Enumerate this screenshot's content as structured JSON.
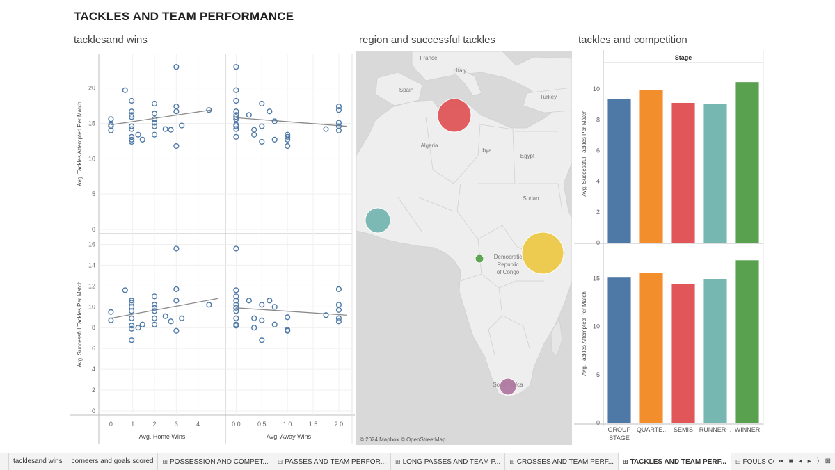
{
  "dashboard": {
    "title": "TACKLES AND TEAM PERFORMANCE"
  },
  "sheets": {
    "scatter_title": "tacklesand wins",
    "map_title": "region and successful tackles",
    "bar_title": "tackles and competition"
  },
  "map": {
    "attribution": "© 2024 Mapbox © OpenStreetMap",
    "labels": [
      {
        "text": "France"
      },
      {
        "text": "Italy"
      },
      {
        "text": "Spain"
      },
      {
        "text": "Turkey"
      },
      {
        "text": "Algeria"
      },
      {
        "text": "Libya"
      },
      {
        "text": "Egypt"
      },
      {
        "text": "Sudan"
      },
      {
        "text": "Democratic"
      },
      {
        "text": "Republic"
      },
      {
        "text": "of Congo"
      },
      {
        "text": "South Africa"
      }
    ],
    "bubbles": [
      {
        "region": "North Africa",
        "color": "#e15759"
      },
      {
        "region": "West Africa",
        "color": "#76b7b2"
      },
      {
        "region": "Central Africa",
        "color": "#59a14f"
      },
      {
        "region": "East Africa",
        "color": "#edc948"
      },
      {
        "region": "Southern Africa",
        "color": "#b07aa1"
      }
    ]
  },
  "chart_data": [
    {
      "type": "scatter",
      "title": "tacklesand wins",
      "xlabel": "Avg. Home Wins",
      "ylabel": "Avg. Tackles Attempted Per Match",
      "xlim": [
        -0.3,
        5
      ],
      "ylim": [
        0,
        24
      ],
      "xticks": [
        0,
        1,
        2,
        3,
        4
      ],
      "yticks": [
        0,
        5,
        10,
        15,
        20
      ],
      "trend": [
        [
          0,
          14.8
        ],
        [
          4.6,
          16.9
        ]
      ],
      "points": [
        [
          0,
          15.6
        ],
        [
          0,
          14.8
        ],
        [
          0,
          14.0
        ],
        [
          0,
          14.6
        ],
        [
          0.65,
          19.7
        ],
        [
          0.95,
          18.2
        ],
        [
          0.95,
          16.7
        ],
        [
          0.95,
          16.2
        ],
        [
          0.95,
          15.9
        ],
        [
          0.95,
          14.6
        ],
        [
          0.95,
          14.2
        ],
        [
          0.95,
          13.1
        ],
        [
          0.95,
          12.7
        ],
        [
          0.95,
          12.4
        ],
        [
          1.25,
          13.4
        ],
        [
          1.45,
          12.7
        ],
        [
          2,
          17.8
        ],
        [
          2,
          16.4
        ],
        [
          2,
          15.6
        ],
        [
          2,
          15.1
        ],
        [
          2,
          14.6
        ],
        [
          2,
          13.4
        ],
        [
          2.5,
          14.2
        ],
        [
          2.75,
          14.1
        ],
        [
          3,
          23.0
        ],
        [
          3,
          17.4
        ],
        [
          3,
          16.7
        ],
        [
          3,
          11.8
        ],
        [
          3.25,
          14.7
        ],
        [
          4.5,
          16.9
        ]
      ]
    },
    {
      "type": "scatter",
      "title": "tacklesand wins",
      "xlabel": "Avg. Away Wins",
      "ylabel": "Avg. Tackles Attempted Per Match",
      "xlim": [
        -0.1,
        2.15
      ],
      "ylim": [
        0,
        24
      ],
      "xticks": [
        0.0,
        0.5,
        1.0,
        1.5,
        2.0
      ],
      "yticks": [
        0,
        5,
        10,
        15,
        20
      ],
      "trend": [
        [
          0,
          15.8
        ],
        [
          2.15,
          14.6
        ]
      ],
      "points": [
        [
          0,
          23.0
        ],
        [
          0,
          19.7
        ],
        [
          0,
          18.2
        ],
        [
          0,
          16.7
        ],
        [
          0,
          16.2
        ],
        [
          0,
          15.9
        ],
        [
          0,
          15.6
        ],
        [
          0,
          14.8
        ],
        [
          0,
          14.6
        ],
        [
          0,
          14.2
        ],
        [
          0,
          13.1
        ],
        [
          0.25,
          16.2
        ],
        [
          0.35,
          14.1
        ],
        [
          0.35,
          13.4
        ],
        [
          0.5,
          17.8
        ],
        [
          0.5,
          14.6
        ],
        [
          0.5,
          12.4
        ],
        [
          0.65,
          16.7
        ],
        [
          0.75,
          15.3
        ],
        [
          0.75,
          12.7
        ],
        [
          1,
          13.4
        ],
        [
          1,
          13.1
        ],
        [
          1,
          12.7
        ],
        [
          1,
          11.8
        ],
        [
          1.75,
          14.2
        ],
        [
          2,
          17.4
        ],
        [
          2,
          16.9
        ],
        [
          2,
          15.1
        ],
        [
          2,
          14.6
        ],
        [
          2,
          14.0
        ]
      ]
    },
    {
      "type": "scatter",
      "title": "tacklesand wins",
      "xlabel": "Avg. Home Wins",
      "ylabel": "Avg. Successful Tackles Per Match",
      "xlim": [
        -0.3,
        5
      ],
      "ylim": [
        0,
        16.5
      ],
      "xticks": [
        0,
        1,
        2,
        3,
        4
      ],
      "yticks": [
        0,
        2,
        4,
        6,
        8,
        10,
        12,
        14,
        16
      ],
      "trend": [
        [
          0,
          8.9
        ],
        [
          4.9,
          10.8
        ]
      ],
      "points": [
        [
          0,
          9.5
        ],
        [
          0,
          8.7
        ],
        [
          0.65,
          11.6
        ],
        [
          0.95,
          10.6
        ],
        [
          0.95,
          10.4
        ],
        [
          0.95,
          10.0
        ],
        [
          0.95,
          9.6
        ],
        [
          0.95,
          8.9
        ],
        [
          0.95,
          8.2
        ],
        [
          0.95,
          7.9
        ],
        [
          0.95,
          6.8
        ],
        [
          1.25,
          8.0
        ],
        [
          1.45,
          8.3
        ],
        [
          2,
          11.0
        ],
        [
          2,
          10.2
        ],
        [
          2,
          9.9
        ],
        [
          2,
          9.6
        ],
        [
          2,
          8.9
        ],
        [
          2,
          8.3
        ],
        [
          2.5,
          9.1
        ],
        [
          2.75,
          8.6
        ],
        [
          3,
          15.6
        ],
        [
          3,
          11.7
        ],
        [
          3,
          10.6
        ],
        [
          3,
          7.7
        ],
        [
          3.25,
          8.9
        ],
        [
          4.5,
          10.2
        ]
      ]
    },
    {
      "type": "scatter",
      "title": "tacklesand wins",
      "xlabel": "Avg. Away Wins",
      "ylabel": "Avg. Successful Tackles Per Match",
      "xlim": [
        -0.1,
        2.15
      ],
      "ylim": [
        0,
        16.5
      ],
      "xticks": [
        0.0,
        0.5,
        1.0,
        1.5,
        2.0
      ],
      "yticks": [
        0,
        2,
        4,
        6,
        8,
        10,
        12,
        14,
        16
      ],
      "trend": [
        [
          0,
          9.9
        ],
        [
          2.15,
          9.2
        ]
      ],
      "points": [
        [
          0,
          15.6
        ],
        [
          0,
          11.6
        ],
        [
          0,
          11.0
        ],
        [
          0,
          10.6
        ],
        [
          0,
          10.2
        ],
        [
          0,
          9.9
        ],
        [
          0,
          9.6
        ],
        [
          0,
          8.9
        ],
        [
          0,
          8.3
        ],
        [
          0,
          8.2
        ],
        [
          0.25,
          10.6
        ],
        [
          0.35,
          8.9
        ],
        [
          0.35,
          8.0
        ],
        [
          0.5,
          10.2
        ],
        [
          0.5,
          8.7
        ],
        [
          0.5,
          6.8
        ],
        [
          0.65,
          10.6
        ],
        [
          0.75,
          8.3
        ],
        [
          0.75,
          10.0
        ],
        [
          1,
          9.0
        ],
        [
          1,
          7.8
        ],
        [
          1,
          7.7
        ],
        [
          1.75,
          9.2
        ],
        [
          2,
          11.7
        ],
        [
          2,
          10.2
        ],
        [
          2,
          9.7
        ],
        [
          2,
          8.9
        ],
        [
          2,
          8.6
        ]
      ]
    },
    {
      "type": "bar",
      "title": "tackles and competition",
      "header": "Stage",
      "categories": [
        "GROUP STAGE",
        "QUARTE..",
        "SEMIS",
        "RUNNER-..",
        "WINNER"
      ],
      "colors": [
        "#4e79a7",
        "#f28e2b",
        "#e15759",
        "#76b7b2",
        "#59a14f"
      ],
      "series": [
        {
          "metric": "Avg. Successful Tackles Per Match",
          "values": [
            9.35,
            9.95,
            9.1,
            9.05,
            10.45
          ],
          "ylim": [
            0,
            11
          ],
          "yticks": [
            0,
            2,
            4,
            6,
            8,
            10
          ]
        },
        {
          "metric": "Avg. Tackles Attempted Per Match",
          "values": [
            15.1,
            15.6,
            14.4,
            14.9,
            16.9
          ],
          "ylim": [
            0,
            17.5
          ],
          "yticks": [
            0,
            5,
            10,
            15
          ]
        }
      ]
    }
  ],
  "tabs": [
    {
      "label": "",
      "icon": ""
    },
    {
      "label": "tacklesand wins",
      "icon": ""
    },
    {
      "label": "corneers and goals scored",
      "icon": ""
    },
    {
      "label": "POSSESSION AND COMPET...",
      "icon": "⊞"
    },
    {
      "label": "PASSES AND TEAM PERFOR...",
      "icon": "⊞"
    },
    {
      "label": "LONG PASSES AND TEAM P...",
      "icon": "⊞"
    },
    {
      "label": "CROSSES AND TEAM PERF...",
      "icon": "⊞"
    },
    {
      "label": "TACKLES AND TEAM PERF...",
      "icon": "⊞",
      "active": true
    },
    {
      "label": "FOULS CONCEDED AND TE",
      "icon": "⊞"
    }
  ],
  "tab_nav": [
    "▪▪",
    "■",
    "◂",
    "▸",
    "⟩",
    "⊞"
  ]
}
